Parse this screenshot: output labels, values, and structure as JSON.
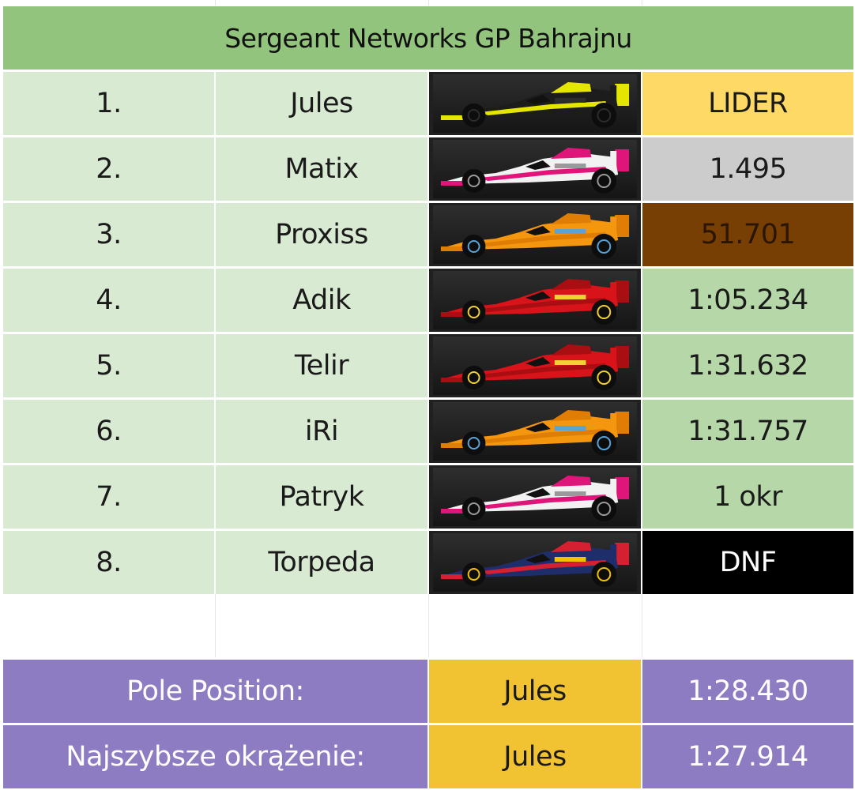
{
  "title": "Sergeant Networks GP Bahrajnu",
  "rows": [
    {
      "pos": "1.",
      "driver": "Jules",
      "car": "renault-car-icon",
      "result": "LIDER",
      "result_style": "gold"
    },
    {
      "pos": "2.",
      "driver": "Matix",
      "car": "haas-car-icon",
      "result": "1.495",
      "result_style": "silver"
    },
    {
      "pos": "3.",
      "driver": "Proxiss",
      "car": "mclaren-car-icon",
      "result": "51.701",
      "result_style": "bronze"
    },
    {
      "pos": "4.",
      "driver": "Adik",
      "car": "ferrari-car-icon",
      "result": "1:05.234",
      "result_style": "time-green"
    },
    {
      "pos": "5.",
      "driver": "Telir",
      "car": "ferrari-car-icon",
      "result": "1:31.632",
      "result_style": "time-green"
    },
    {
      "pos": "6.",
      "driver": "iRi",
      "car": "mclaren-car-icon",
      "result": "1:31.757",
      "result_style": "time-green"
    },
    {
      "pos": "7.",
      "driver": "Patryk",
      "car": "haas-car-icon",
      "result": "1 okr",
      "result_style": "time-green"
    },
    {
      "pos": "8.",
      "driver": "Torpeda",
      "car": "redbull-car-icon",
      "result": "DNF",
      "result_style": "black"
    }
  ],
  "pole": {
    "label": "Pole Position:",
    "driver": "Jules",
    "time": "1:28.430"
  },
  "fastest": {
    "label": "Najszybsze okrążenie:",
    "driver": "Jules",
    "time": "1:27.914"
  },
  "colors": {
    "title_bg": "#93c47d",
    "row_bg": "#d9ead3",
    "leader": "#ffd966",
    "second": "#cccccc",
    "third": "#783f04",
    "time_green": "#b6d7a8",
    "dnf": "#000000",
    "summary_label": "#8e7cc3",
    "summary_driver": "#f1c232"
  },
  "car_liveries": {
    "renault-car-icon": {
      "body": "#1c1c1c",
      "accent": "#e5e600",
      "detail": "#2c2c2c"
    },
    "haas-car-icon": {
      "body": "#f2f2f2",
      "accent": "#e0157a",
      "detail": "#9a9a9a"
    },
    "mclaren-car-icon": {
      "body": "#f5960f",
      "accent": "#e07d05",
      "detail": "#5aa3d8"
    },
    "ferrari-car-icon": {
      "body": "#d8141a",
      "accent": "#a80e12",
      "detail": "#f2d233"
    },
    "redbull-car-icon": {
      "body": "#1f2d6b",
      "accent": "#d42030",
      "detail": "#f2c200"
    }
  }
}
